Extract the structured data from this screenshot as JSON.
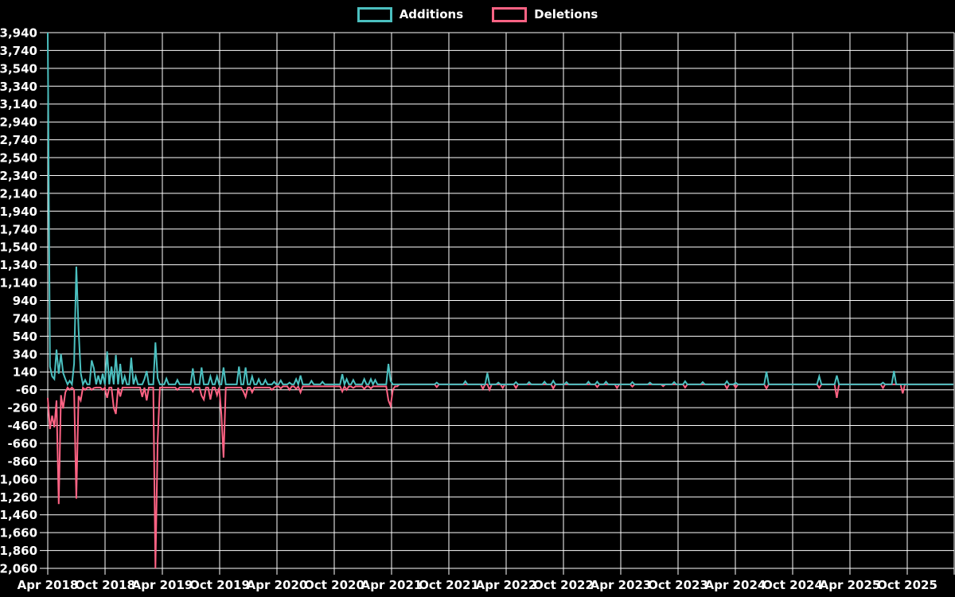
{
  "legend": {
    "items": [
      {
        "label": "Additions",
        "color": "#4bc0c0"
      },
      {
        "label": "Deletions",
        "color": "#ff6384"
      }
    ]
  },
  "chart_data": {
    "type": "line",
    "title": "",
    "background_color": "#000000",
    "grid_color": "#ffffff",
    "text_color": "#ffffff",
    "grid": true,
    "legend_position": "top",
    "x_unit": "week",
    "x_range_start": "Apr 2018",
    "x_range_end": "Nov 2025",
    "weeks_total": 413,
    "x_tick_labels": [
      "Apr 2018",
      "Oct 2018",
      "Apr 2019",
      "Oct 2019",
      "Apr 2020",
      "Oct 2020",
      "Apr 2021",
      "Oct 2021",
      "Apr 2022",
      "Oct 2022",
      "Apr 2023",
      "Oct 2023",
      "Apr 2024",
      "Oct 2024",
      "Apr 2025",
      "Oct 2025"
    ],
    "ylim": [
      -2060,
      3940
    ],
    "y_tick_step": 200,
    "y_ticks": [
      3940,
      3740,
      3540,
      3340,
      3140,
      2940,
      2740,
      2540,
      2340,
      2140,
      1940,
      1740,
      1540,
      1340,
      1140,
      940,
      740,
      540,
      340,
      140,
      -60,
      -260,
      -460,
      -660,
      -860,
      -1060,
      -1260,
      -1460,
      -1660,
      -1860,
      -2060
    ],
    "y_tick_labels": [
      "3,940",
      "3,740",
      "3,540",
      "3,340",
      "3,140",
      "2,940",
      "2,740",
      "2,540",
      "2,340",
      "2,140",
      "1,940",
      "1,740",
      "1,540",
      "1,340",
      "1,140",
      "940",
      "740",
      "540",
      "340",
      "140",
      "-60",
      "-260",
      "-460",
      "-660",
      "-860",
      "-1,060",
      "-1,260",
      "-1,460",
      "-1,660",
      "-1,860",
      "-2,060"
    ],
    "series": [
      {
        "name": "Additions",
        "color": "#4bc0c0",
        "default": 0,
        "points": {
          "0": 3940,
          "1": 200,
          "2": 90,
          "3": 60,
          "4": 390,
          "5": 120,
          "6": 340,
          "7": 130,
          "8": 60,
          "10": 40,
          "12": 230,
          "13": 1320,
          "14": 620,
          "15": 130,
          "17": 50,
          "20": 270,
          "21": 180,
          "23": 100,
          "25": 120,
          "27": 370,
          "29": 200,
          "31": 330,
          "33": 230,
          "35": 90,
          "38": 300,
          "40": 90,
          "44": 60,
          "45": 150,
          "49": 470,
          "50": 70,
          "54": 65,
          "59": 50,
          "66": 180,
          "70": 190,
          "74": 90,
          "77": 90,
          "80": 190,
          "87": 200,
          "90": 190,
          "93": 90,
          "96": 60,
          "99": 50,
          "103": 30,
          "106": 45,
          "110": 20,
          "113": 60,
          "115": 100,
          "120": 40,
          "125": 30,
          "134": 115,
          "136": 60,
          "139": 50,
          "144": 60,
          "147": 60,
          "149": 50,
          "155": 230,
          "156": 40,
          "177": 20,
          "190": 35,
          "200": 130,
          "205": 20,
          "213": 25,
          "219": 25,
          "226": 30,
          "230": 40,
          "236": 25,
          "246": 30,
          "250": 30,
          "254": 30,
          "266": 25,
          "274": 20,
          "285": 25,
          "290": 35,
          "298": 25,
          "309": 35,
          "313": 20,
          "327": 145,
          "351": 90,
          "359": 100,
          "380": 20,
          "385": 150
        }
      },
      {
        "name": "Deletions",
        "color": "#ff6384",
        "default": 0,
        "baseline_segments": [
          {
            "from": 0,
            "to": 104,
            "value": -35
          },
          {
            "from": 104,
            "to": 160,
            "value": -22
          }
        ],
        "points": {
          "0": -150,
          "1": -500,
          "2": -350,
          "3": -480,
          "4": -180,
          "5": -1340,
          "6": -120,
          "7": -270,
          "8": -90,
          "10": -60,
          "12": -60,
          "13": -1280,
          "14": -130,
          "15": -180,
          "17": -60,
          "20": -60,
          "21": -40,
          "25": -60,
          "27": -150,
          "30": -260,
          "31": -330,
          "33": -135,
          "43": -140,
          "45": -180,
          "49": -2060,
          "50": -640,
          "59": -60,
          "66": -80,
          "70": -125,
          "71": -170,
          "74": -170,
          "77": -120,
          "79": -340,
          "80": -820,
          "89": -80,
          "90": -140,
          "93": -90,
          "102": -60,
          "106": -45,
          "110": -60,
          "113": -50,
          "115": -90,
          "134": -80,
          "136": -60,
          "139": -40,
          "144": -50,
          "147": -45,
          "155": -180,
          "156": -240,
          "157": -60,
          "177": -30,
          "198": -50,
          "201": -60,
          "207": -40,
          "213": -40,
          "230": -45,
          "250": -30,
          "259": -40,
          "266": -25,
          "280": -20,
          "290": -35,
          "309": -45,
          "313": -35,
          "327": -45,
          "351": -40,
          "359": -150,
          "380": -40,
          "389": -100
        }
      }
    ]
  }
}
